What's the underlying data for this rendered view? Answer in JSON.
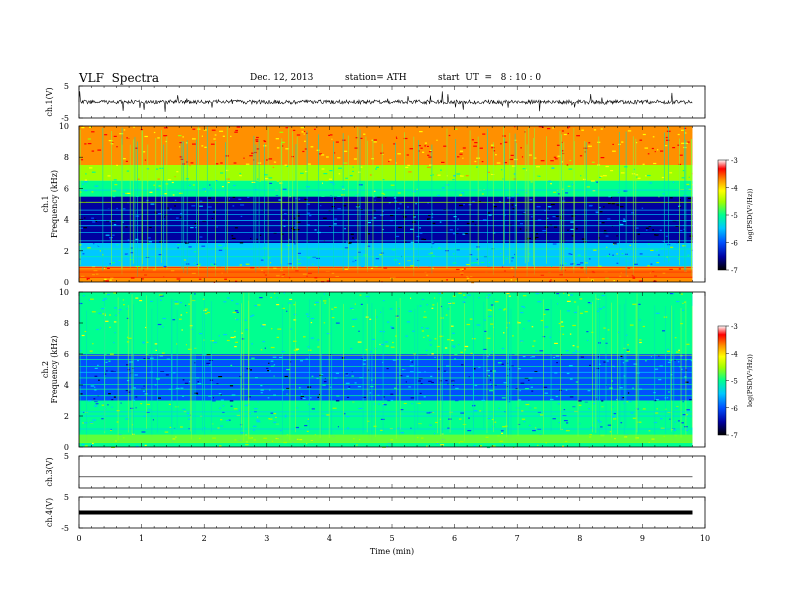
{
  "header": {
    "title": "VLF  Spectra",
    "date": "Dec. 12, 2013",
    "station": "station= ATH",
    "start": "start  UT  =   8 : 10 : 0"
  },
  "colors": {
    "spectrogram_scale": [
      "#000000",
      "#0000a0",
      "#0050ff",
      "#00c8ff",
      "#00ff90",
      "#a0ff00",
      "#ffff00",
      "#ff9000",
      "#ff0000",
      "#ffffff"
    ]
  },
  "chart_data": [
    {
      "type": "line",
      "panel": "ch1",
      "ylabel": "ch.1(V)",
      "ylim": [
        -5,
        5
      ],
      "yticks": [
        "5",
        "-5"
      ],
      "series": [
        {
          "values_description_free": true,
          "level": 0,
          "noise_amplitude": 1
        }
      ]
    },
    {
      "type": "heatmap",
      "panel": "ch1-spec",
      "ylabel": "ch.1\nFrequency  (kHz)",
      "ylim": [
        0,
        10
      ],
      "yticks": [
        "0",
        "2",
        "4",
        "6",
        "8",
        "10"
      ],
      "colorbar": {
        "label": "log(PSD(V²/Hz))",
        "ticks": [
          "-3",
          "-4",
          "-5",
          "-6",
          "-7"
        ],
        "range": [
          -7,
          -3
        ]
      },
      "bands": [
        {
          "from_khz": 0.0,
          "to_khz": 1.0,
          "log_psd": -3.6
        },
        {
          "from_khz": 1.0,
          "to_khz": 2.5,
          "log_psd": -5.3
        },
        {
          "from_khz": 2.5,
          "to_khz": 5.5,
          "log_psd": -6.3
        },
        {
          "from_khz": 5.5,
          "to_khz": 6.5,
          "log_psd": -5.0
        },
        {
          "from_khz": 6.5,
          "to_khz": 7.5,
          "log_psd": -4.5
        },
        {
          "from_khz": 7.5,
          "to_khz": 10.0,
          "log_psd": -3.6
        }
      ]
    },
    {
      "type": "heatmap",
      "panel": "ch2-spec",
      "ylabel": "ch.2\nFrequency  (kHz)",
      "ylim": [
        0,
        10
      ],
      "yticks": [
        "0",
        "2",
        "4",
        "6",
        "8",
        "10"
      ],
      "colorbar": {
        "label": "log(PSD(V²/Hz))",
        "ticks": [
          "-3",
          "-4",
          "-5",
          "-6",
          "-7"
        ],
        "range": [
          -7,
          -3
        ]
      },
      "bands": [
        {
          "from_khz": 0.0,
          "to_khz": 1.0,
          "log_psd": -4.8
        },
        {
          "from_khz": 1.0,
          "to_khz": 3.0,
          "log_psd": -5.2
        },
        {
          "from_khz": 3.0,
          "to_khz": 6.0,
          "log_psd": -5.9
        },
        {
          "from_khz": 6.0,
          "to_khz": 10.0,
          "log_psd": -5.0
        }
      ]
    },
    {
      "type": "line",
      "panel": "ch3",
      "ylabel": "ch.3(V)",
      "ylim": [
        -5,
        5
      ],
      "yticks": [
        "5"
      ],
      "series": [
        {
          "level": -1.5
        }
      ]
    },
    {
      "type": "line",
      "panel": "ch4",
      "ylabel": "ch.4(V)",
      "ylim": [
        -5,
        5
      ],
      "yticks": [
        "5",
        "-5"
      ],
      "series": [
        {
          "level": 0
        }
      ]
    },
    {
      "type": "axis",
      "panel": "time-axis",
      "xlabel": "Time  (min)",
      "xlim": [
        0,
        10
      ],
      "xticks": [
        "0",
        "1",
        "2",
        "3",
        "4",
        "5",
        "6",
        "7",
        "8",
        "9",
        "10"
      ],
      "data_end_min": 9.8
    }
  ]
}
